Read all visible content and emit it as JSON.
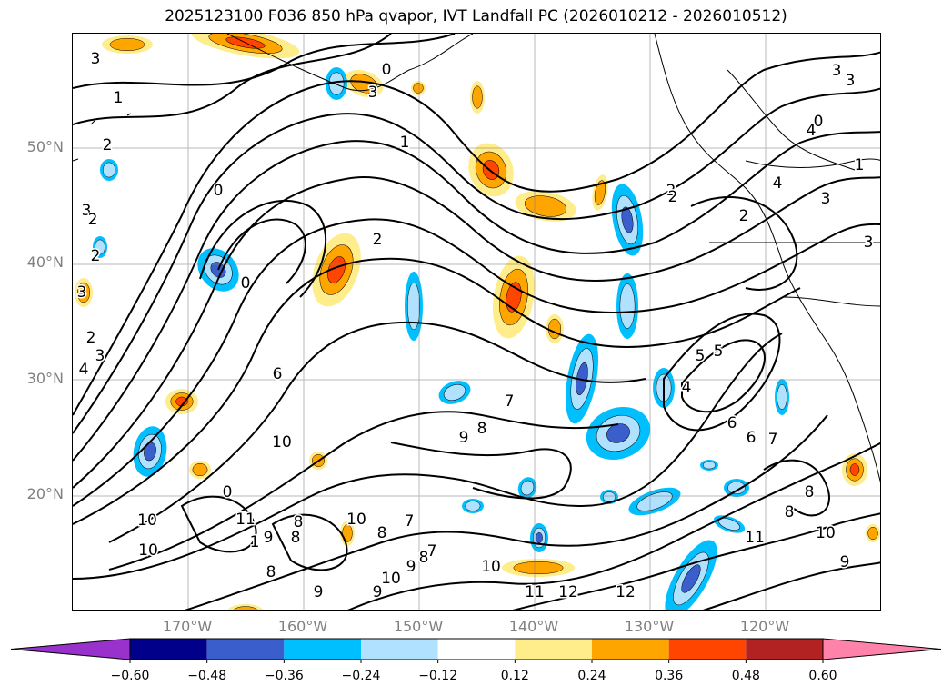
{
  "title": "2025123100 F036 850 hPa qvapor, IVT Landfall PC (2026010212 - 2026010512)",
  "axes": {
    "lat_labels": [
      "50°N",
      "40°N",
      "30°N",
      "20°N"
    ],
    "lon_labels": [
      "170°W",
      "160°W",
      "150°W",
      "140°W",
      "130°W",
      "120°W"
    ]
  },
  "colorbar": {
    "tick_labels": [
      "−0.60",
      "−0.48",
      "−0.36",
      "−0.24",
      "−0.12",
      "0.12",
      "0.24",
      "0.36",
      "0.48",
      "0.60"
    ],
    "colors": [
      "#9932cc",
      "#00008b",
      "#3a5fcd",
      "#00bfff",
      "#b0e2ff",
      "#ffffff",
      "#ffec8b",
      "#ffa500",
      "#ff4500",
      "#b22222",
      "#ff82ab"
    ],
    "extend": "both"
  },
  "contour_labels": [
    "3",
    "1",
    "2",
    "3",
    "2",
    "2",
    "3",
    "0",
    "0",
    "1",
    "2",
    "2",
    "3",
    "3",
    "1",
    "0",
    "4",
    "4",
    "3",
    "3",
    "2",
    "2",
    "0",
    "1",
    "3",
    "0",
    "2",
    "3",
    "4",
    "5",
    "6",
    "7",
    "8",
    "9",
    "10",
    "10",
    "10",
    "11",
    "9",
    "8",
    "8",
    "7",
    "8",
    "9",
    "10",
    "11",
    "12",
    "12",
    "11",
    "10",
    "9",
    "8",
    "8",
    "7",
    "6",
    "6",
    "5",
    "4",
    "10",
    "8",
    "9",
    "10",
    "9",
    "8",
    "7"
  ],
  "grid": true,
  "basemap_colors": {
    "coast": "#000000",
    "contour": "#000000",
    "grid": "#808080"
  }
}
